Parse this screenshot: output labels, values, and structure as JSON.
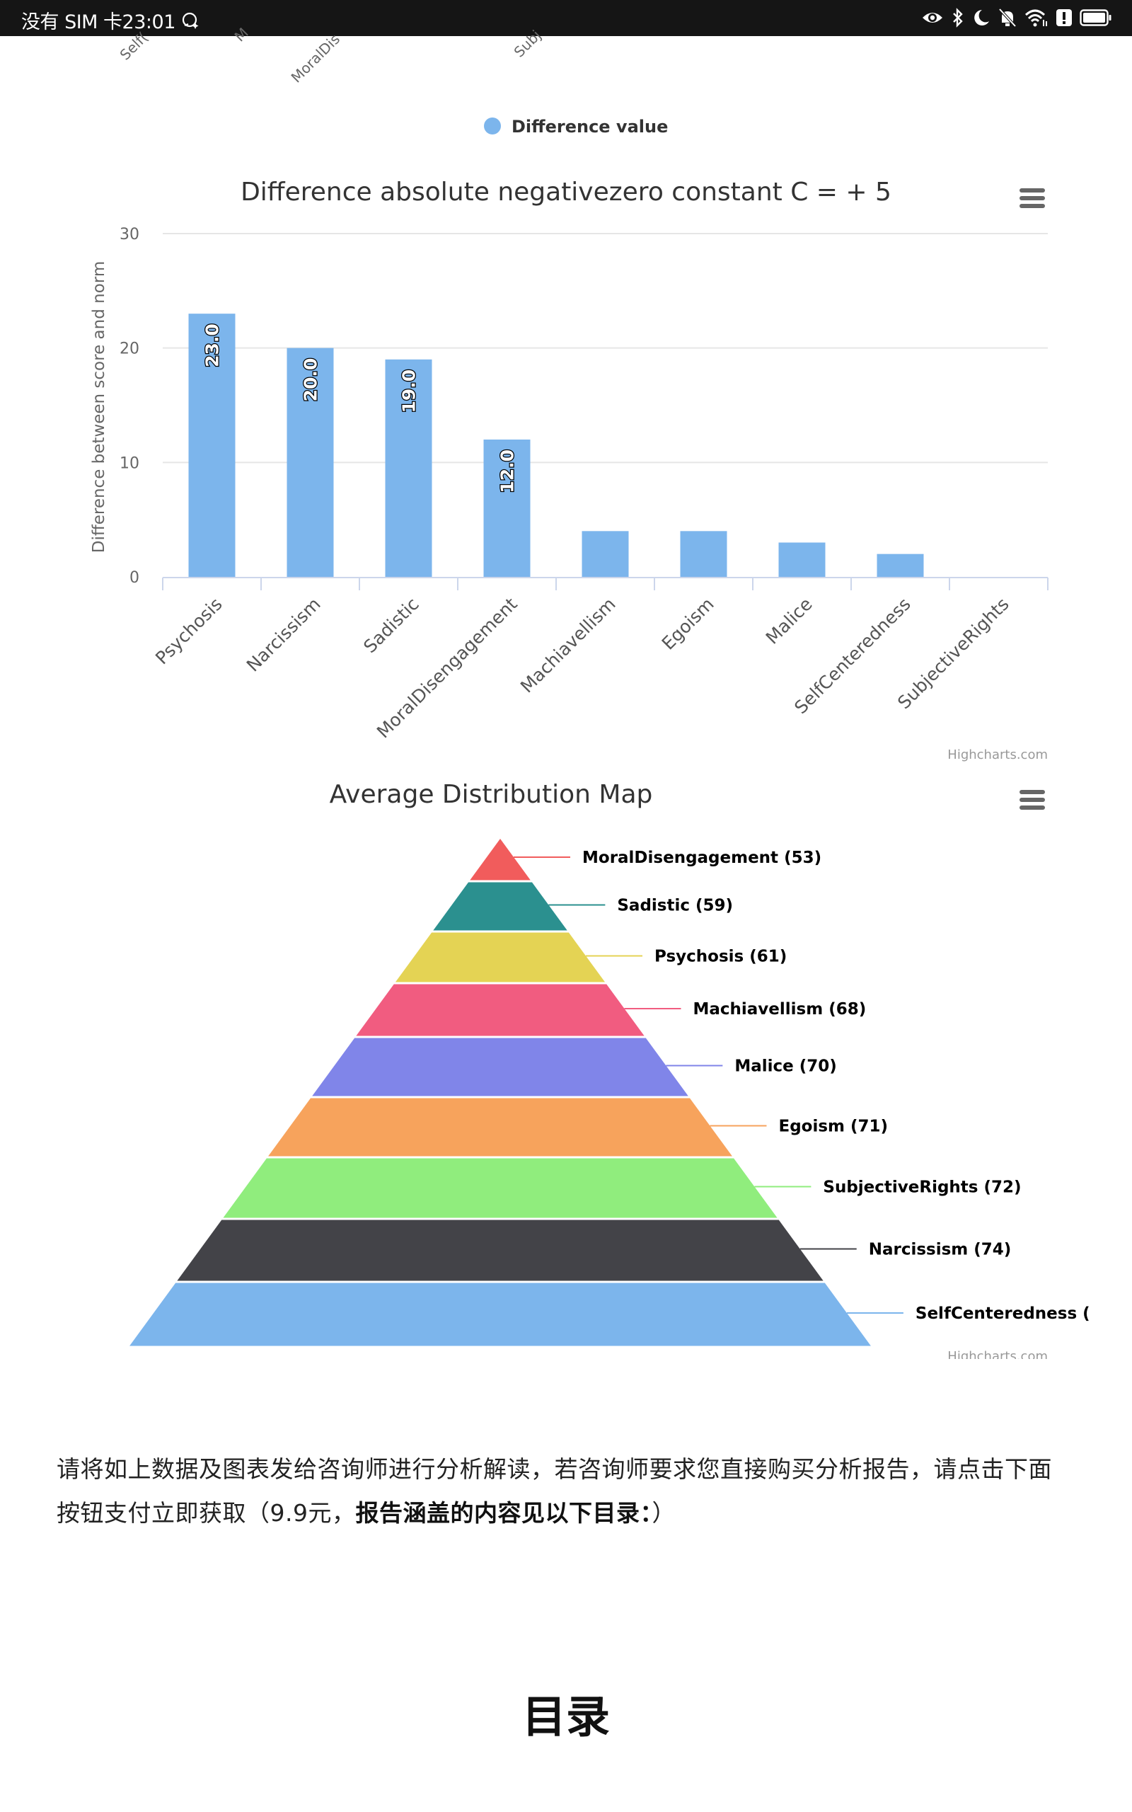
{
  "status_bar": {
    "carrier_time": "没有 SIM 卡23:01",
    "icons": [
      "assistant-icon",
      "eye-icon",
      "bluetooth-icon",
      "moon-icon",
      "bell-off-icon",
      "wifi-icon",
      "alert-icon",
      "battery-icon"
    ]
  },
  "prev_chart_fragment": {
    "cut_labels": [
      "Self(",
      "M",
      "MoralDis",
      "Subj"
    ],
    "legend_label": "Difference value",
    "legend_color": "#7cb5ec"
  },
  "chart_data": [
    {
      "type": "bar",
      "title": "Difference absolute negativezero constant C = + 5",
      "xlabel": "",
      "ylabel": "Difference between score and norm",
      "ylim": [
        0,
        30
      ],
      "yticks": [
        0,
        10,
        20,
        30
      ],
      "grid": true,
      "categories": [
        "Psychosis",
        "Narcissism",
        "Sadistic",
        "MoralDisengagement",
        "Machiavellism",
        "Egoism",
        "Malice",
        "SelfCenteredness",
        "SubjectiveRights"
      ],
      "values": [
        23,
        20,
        19,
        12,
        4,
        4,
        3,
        2,
        0
      ],
      "data_labels": [
        "23.0",
        "20.0",
        "19.0",
        "12.0",
        "",
        "",
        "",
        "",
        ""
      ],
      "color": "#7cb5ec",
      "credits": "Highcharts.com",
      "menu_icon": "hamburger-menu-icon"
    },
    {
      "type": "pyramid",
      "title": "Average Distribution Map",
      "items": [
        {
          "label": "MoralDisengagement (53)",
          "name": "MoralDisengagement",
          "value": 53,
          "color": "#f15c5c"
        },
        {
          "label": "Sadistic (59)",
          "name": "Sadistic",
          "value": 59,
          "color": "#2b908f"
        },
        {
          "label": "Psychosis (61)",
          "name": "Psychosis",
          "value": 61,
          "color": "#e4d354"
        },
        {
          "label": "Machiavellism (68)",
          "name": "Machiavellism",
          "value": 68,
          "color": "#f15c80"
        },
        {
          "label": "Malice (70)",
          "name": "Malice",
          "value": 70,
          "color": "#8085e9"
        },
        {
          "label": "Egoism (71)",
          "name": "Egoism",
          "value": 71,
          "color": "#f7a35c"
        },
        {
          "label": "SubjectiveRights (72)",
          "name": "SubjectiveRights",
          "value": 72,
          "color": "#90ed7d"
        },
        {
          "label": "Narcissism (74)",
          "name": "Narcissism",
          "value": 74,
          "color": "#434348"
        },
        {
          "label": "SelfCenteredness (",
          "name": "SelfCenteredness",
          "value": null,
          "color": "#7cb5ec"
        }
      ],
      "credits": "Highcharts.com",
      "menu_icon": "hamburger-menu-icon"
    }
  ],
  "content": {
    "paragraph_normal": "请将如上数据及图表发给咨询师进行分析解读，若咨询师要求您直接购买分析报告，请点击下面按钮支付立即获取（9.9元，",
    "paragraph_bold": "报告涵盖的内容见以下目录：",
    "paragraph_end": "）",
    "toc_heading": "目录"
  }
}
